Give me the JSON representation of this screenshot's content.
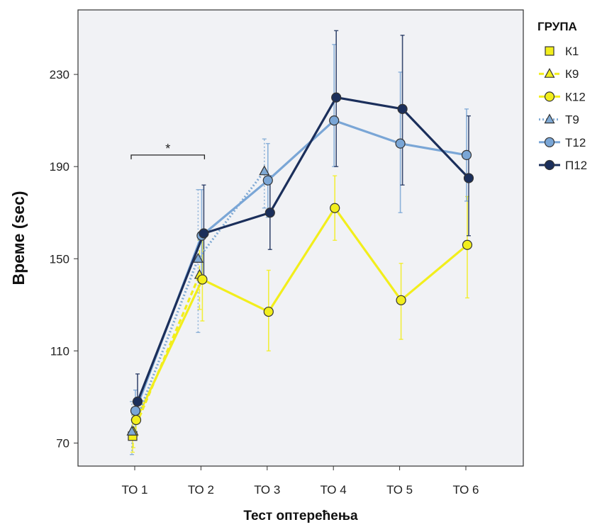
{
  "chart_data": {
    "type": "line",
    "title": "",
    "xlabel": "Тест оптерећења",
    "ylabel": "Време (sec)",
    "categories": [
      "ТО 1",
      "ТО 2",
      "ТО 3",
      "ТО 4",
      "ТО 5",
      "ТО 6"
    ],
    "ylim": [
      60,
      258
    ],
    "yticks": [
      70,
      110,
      150,
      190,
      230
    ],
    "grid": false,
    "legend": {
      "title": "ГРУПА",
      "position": "right"
    },
    "series": [
      {
        "name": "К1",
        "color": "#f2ee1c",
        "dash": "solid",
        "marker": "square",
        "values": [
          73,
          null,
          null,
          null,
          null,
          null
        ],
        "err_low": [
          66,
          null,
          null,
          null,
          null,
          null
        ],
        "err_high": [
          80,
          null,
          null,
          null,
          null,
          null
        ]
      },
      {
        "name": "К9",
        "color": "#f2ee1c",
        "dash": "dashed",
        "marker": "triangle",
        "values": [
          75,
          143,
          null,
          null,
          null,
          null
        ],
        "err_low": [
          68,
          128,
          null,
          null,
          null,
          null
        ],
        "err_high": [
          82,
          158,
          null,
          null,
          null,
          null
        ]
      },
      {
        "name": "К12",
        "color": "#f2ee1c",
        "dash": "solid",
        "marker": "circle",
        "values": [
          80,
          141,
          127,
          172,
          132,
          156
        ],
        "err_low": [
          73,
          123,
          110,
          158,
          115,
          133
        ],
        "err_high": [
          87,
          159,
          145,
          186,
          148,
          177
        ]
      },
      {
        "name": "Т9",
        "color": "#7fa9d4",
        "dash": "dotted",
        "marker": "triangle",
        "values": [
          75,
          150,
          188,
          null,
          null,
          null
        ],
        "err_low": [
          65,
          118,
          172,
          null,
          null,
          null
        ],
        "err_high": [
          88,
          180,
          202,
          null,
          null,
          null
        ]
      },
      {
        "name": "Т12",
        "color": "#7aa6d6",
        "dash": "solid",
        "marker": "circle",
        "values": [
          84,
          160,
          184,
          210,
          200,
          195
        ],
        "err_low": [
          75,
          140,
          168,
          190,
          170,
          175
        ],
        "err_high": [
          93,
          180,
          200,
          243,
          231,
          215
        ]
      },
      {
        "name": "П12",
        "color": "#1b2f5b",
        "dash": "solid",
        "marker": "circle",
        "values": [
          88,
          161,
          170,
          220,
          215,
          185
        ],
        "err_low": [
          79,
          140,
          154,
          190,
          182,
          160
        ],
        "err_high": [
          100,
          182,
          186,
          249,
          247,
          212
        ]
      }
    ],
    "annotations": [
      {
        "text": "*",
        "from": "ТО 1",
        "to": "ТО 2",
        "at_value": 195
      }
    ]
  }
}
